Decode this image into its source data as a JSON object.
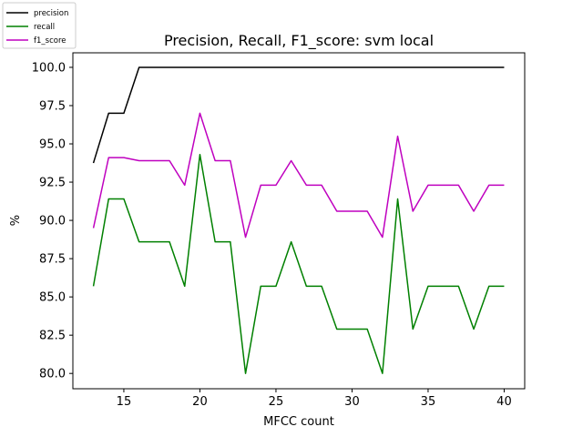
{
  "chart_data": {
    "type": "line",
    "title": "Precision, Recall, F1_score: svm local",
    "xlabel": "MFCC count",
    "ylabel": "%",
    "xlim": [
      11.65,
      41.35
    ],
    "ylim": [
      79.0,
      100.95
    ],
    "xticks": [
      15,
      20,
      25,
      30,
      35,
      40
    ],
    "xtick_labels": [
      "15",
      "20",
      "25",
      "30",
      "35",
      "40"
    ],
    "yticks": [
      80.0,
      82.5,
      85.0,
      87.5,
      90.0,
      92.5,
      95.0,
      97.5,
      100.0
    ],
    "ytick_labels": [
      "80.0",
      "82.5",
      "85.0",
      "87.5",
      "90.0",
      "92.5",
      "95.0",
      "97.5",
      "100.0"
    ],
    "grid": false,
    "legend_position": "upper-left-outside",
    "x": [
      13,
      14,
      15,
      16,
      17,
      18,
      19,
      20,
      21,
      22,
      23,
      24,
      25,
      26,
      27,
      28,
      29,
      30,
      31,
      32,
      33,
      34,
      35,
      36,
      37,
      38,
      39,
      40
    ],
    "series": [
      {
        "name": "precision",
        "color": "#000000",
        "values": [
          93.75,
          97.0,
          97.0,
          100,
          100,
          100,
          100,
          100,
          100,
          100,
          100,
          100,
          100,
          100,
          100,
          100,
          100,
          100,
          100,
          100,
          100,
          100,
          100,
          100,
          100,
          100,
          100,
          100
        ]
      },
      {
        "name": "recall",
        "color": "#008000",
        "values": [
          85.7,
          91.4,
          91.4,
          88.6,
          88.6,
          88.6,
          85.7,
          94.3,
          88.6,
          88.6,
          80.0,
          85.7,
          85.7,
          88.6,
          85.7,
          85.7,
          82.9,
          82.9,
          82.9,
          80.0,
          91.4,
          82.9,
          85.7,
          85.7,
          85.7,
          82.9,
          85.7,
          85.7
        ]
      },
      {
        "name": "f1_score",
        "color": "#bf00bf",
        "values": [
          89.5,
          94.1,
          94.1,
          93.9,
          93.9,
          93.9,
          92.3,
          97.0,
          93.9,
          93.9,
          88.9,
          92.3,
          92.3,
          93.9,
          92.3,
          92.3,
          90.6,
          90.6,
          90.6,
          88.9,
          95.5,
          90.6,
          92.3,
          92.3,
          92.3,
          90.6,
          92.3,
          92.3
        ]
      }
    ]
  }
}
